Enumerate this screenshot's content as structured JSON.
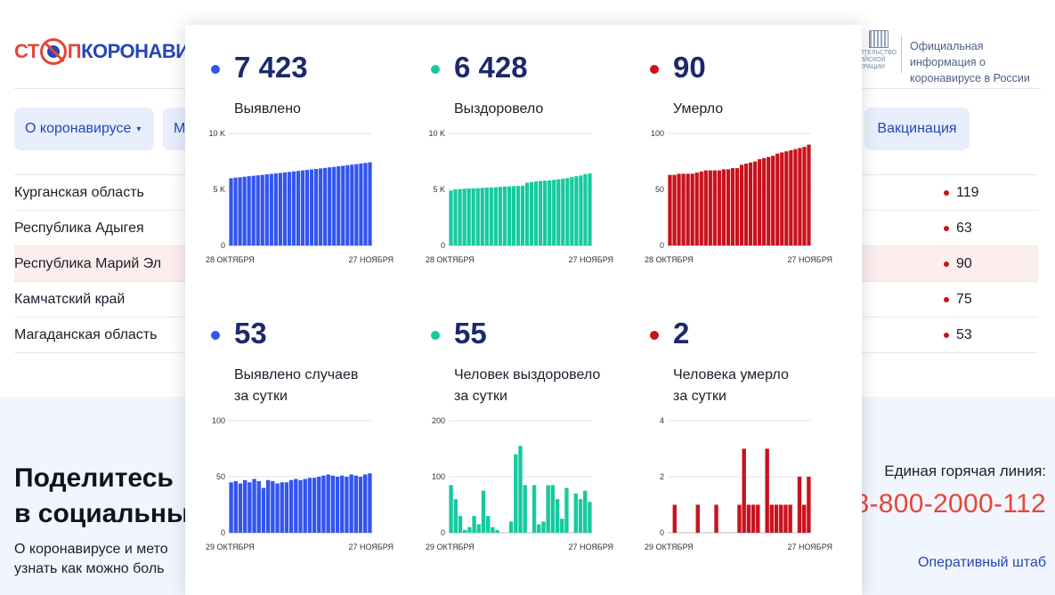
{
  "header": {
    "logo": {
      "part1": "СТ",
      "part2": "П",
      "part3": "КОРОНАВИ"
    },
    "gov_logo_text": [
      "ИТЕЛЬСТВО",
      "ИЙСКОЙ",
      "ЕРАЦИИ"
    ],
    "gov_info": "Официальная информация о коронавирусе в России"
  },
  "nav": {
    "about": "О коронавирусе",
    "about_caret": "▾",
    "m": "М",
    "vaccination": "Вакцинация"
  },
  "regions": [
    {
      "name": "Курганская область",
      "value": "119"
    },
    {
      "name": "Республика Адыгея",
      "value": "63"
    },
    {
      "name": "Республика Марий Эл",
      "value": "90"
    },
    {
      "name": "Камчатский край",
      "value": "75"
    },
    {
      "name": "Магаданская область",
      "value": "53"
    }
  ],
  "footer": {
    "share_line1": "Поделитесь",
    "share_line2": "в социальны",
    "share_text_line1": "О коронавирусе и мето",
    "share_text_line2": "узнать как можно боль",
    "hotline_label": "Единая горячая линия:",
    "hotline_phone": "8-800-2000-112",
    "hq_link": "Оперативный штаб"
  },
  "colors": {
    "blue": "#3355ee",
    "green": "#17c9a0",
    "red": "#c8121e",
    "dark_number": "#1c2a6b"
  },
  "stats": [
    {
      "number": "7 423",
      "label1": "Выявлено",
      "label2": "",
      "color": "#3355ee"
    },
    {
      "number": "6 428",
      "label1": "Выздоровело",
      "label2": "",
      "color": "#17c9a0"
    },
    {
      "number": "90",
      "label1": "Умерло",
      "label2": "",
      "color": "#c8121e"
    },
    {
      "number": "53",
      "label1": "Выявлено случаев",
      "label2": "за сутки",
      "color": "#3355ee"
    },
    {
      "number": "55",
      "label1": "Человек выздоровело",
      "label2": "за сутки",
      "color": "#17c9a0"
    },
    {
      "number": "2",
      "label1": "Человека умерло",
      "label2": "за сутки",
      "color": "#c8121e"
    }
  ],
  "chart_data": [
    {
      "type": "bar",
      "color": "#3355ee",
      "x_start_label": "28 ОКТЯБРЯ",
      "x_end_label": "27 НОЯБРЯ",
      "ylim": [
        0,
        10000
      ],
      "yticks": [
        0,
        5000,
        10000
      ],
      "ytick_labels": [
        "0",
        "5 K",
        "10 K"
      ],
      "values": [
        6000,
        6050,
        6090,
        6130,
        6180,
        6220,
        6260,
        6300,
        6350,
        6390,
        6430,
        6470,
        6520,
        6560,
        6610,
        6650,
        6700,
        6740,
        6790,
        6830,
        6880,
        6920,
        6970,
        7010,
        7060,
        7110,
        7160,
        7210,
        7260,
        7310,
        7370,
        7423
      ]
    },
    {
      "type": "bar",
      "color": "#17c9a0",
      "x_start_label": "28 ОКТЯБРЯ",
      "x_end_label": "27 НОЯБРЯ",
      "ylim": [
        0,
        10000
      ],
      "yticks": [
        0,
        5000,
        10000
      ],
      "ytick_labels": [
        "0",
        "5 K",
        "10 K"
      ],
      "values": [
        4900,
        5000,
        5030,
        5060,
        5090,
        5100,
        5110,
        5130,
        5160,
        5180,
        5200,
        5230,
        5260,
        5280,
        5290,
        5310,
        5330,
        5600,
        5660,
        5720,
        5760,
        5780,
        5800,
        5860,
        5900,
        5960,
        6010,
        6100,
        6180,
        6240,
        6373,
        6428
      ]
    },
    {
      "type": "bar",
      "color": "#c8121e",
      "x_start_label": "28 ОКТЯБРЯ",
      "x_end_label": "27 НОЯБРЯ",
      "ylim": [
        0,
        100
      ],
      "yticks": [
        0,
        50,
        100
      ],
      "ytick_labels": [
        "0",
        "50",
        "100"
      ],
      "values": [
        63,
        63,
        64,
        64,
        64,
        64,
        65,
        66,
        67,
        67,
        67,
        67,
        68,
        68,
        69,
        69,
        72,
        73,
        74,
        75,
        77,
        78,
        79,
        80,
        82,
        83,
        84,
        85,
        86,
        87,
        88,
        90
      ]
    },
    {
      "type": "bar",
      "color": "#3355ee",
      "x_start_label": "29 ОКТЯБРЯ",
      "x_end_label": "27 НОЯБРЯ",
      "ylim": [
        0,
        100
      ],
      "yticks": [
        0,
        50,
        100
      ],
      "ytick_labels": [
        "0",
        "50",
        "100"
      ],
      "values": [
        45,
        46,
        44,
        47,
        45,
        48,
        46,
        40,
        47,
        46,
        44,
        45,
        45,
        47,
        48,
        47,
        48,
        49,
        49,
        50,
        51,
        52,
        51,
        50,
        51,
        50,
        52,
        51,
        50,
        52,
        53
      ]
    },
    {
      "type": "bar",
      "color": "#17c9a0",
      "x_start_label": "29 ОКТЯБРЯ",
      "x_end_label": "27 НОЯБРЯ",
      "ylim": [
        0,
        200
      ],
      "yticks": [
        0,
        100,
        200
      ],
      "ytick_labels": [
        "0",
        "100",
        "200"
      ],
      "values": [
        85,
        60,
        30,
        5,
        10,
        30,
        15,
        75,
        30,
        10,
        5,
        0,
        0,
        20,
        140,
        155,
        85,
        0,
        85,
        15,
        20,
        85,
        85,
        60,
        25,
        80,
        0,
        70,
        60,
        75,
        55
      ]
    },
    {
      "type": "bar",
      "color": "#c8121e",
      "x_start_label": "29 ОКТЯБРЯ",
      "x_end_label": "27 НОЯБРЯ",
      "ylim": [
        0,
        4
      ],
      "yticks": [
        0,
        2,
        4
      ],
      "ytick_labels": [
        "0",
        "2",
        "4"
      ],
      "values": [
        0,
        1,
        0,
        0,
        0,
        0,
        1,
        0,
        0,
        0,
        1,
        0,
        0,
        0,
        0,
        1,
        3,
        1,
        1,
        1,
        0,
        3,
        1,
        1,
        1,
        1,
        1,
        0,
        2,
        1,
        2
      ]
    }
  ]
}
